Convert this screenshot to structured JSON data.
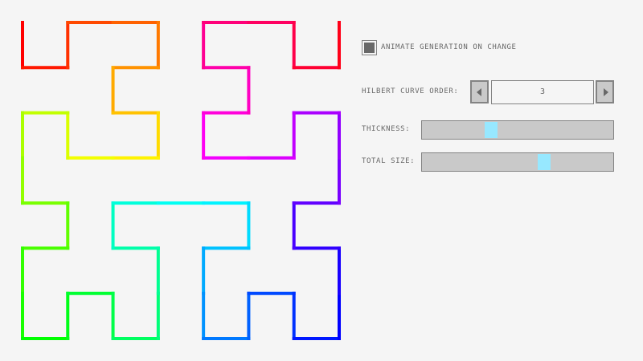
{
  "curve": {
    "order": 3,
    "color_mode": "rainbow-hue-gradient",
    "start_hue": 0,
    "end_hue": 360
  },
  "controls": {
    "animate": {
      "label": "ANIMATE GENERATION ON CHANGE",
      "checked": true
    },
    "order": {
      "label": "HILBERT CURVE ORDER:",
      "value": "3",
      "decrement_icon": "triangle-left-icon",
      "increment_icon": "triangle-right-icon"
    },
    "thickness": {
      "label": "THICKNESS:",
      "value_fraction": 0.35
    },
    "total_size": {
      "label": "TOTAL SIZE:",
      "value_fraction": 0.65
    }
  },
  "colors": {
    "background": "#f5f5f5",
    "border": "#838383",
    "text": "#686868",
    "slider_handle": "#97e8ff",
    "slider_track": "#c9c9c9"
  }
}
